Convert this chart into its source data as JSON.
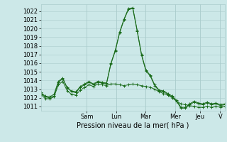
{
  "title": "",
  "xlabel": "Pression niveau de la mer( hPa )",
  "ylim": [
    1010.5,
    1022.8
  ],
  "yticks": [
    1011,
    1012,
    1013,
    1014,
    1015,
    1016,
    1017,
    1018,
    1019,
    1020,
    1021,
    1022
  ],
  "background_color": "#cce8e8",
  "grid_color": "#aacccc",
  "line_color": "#1a6b1a",
  "day_labels": [
    "Sam",
    "Lun",
    "Mar",
    "Mer",
    "Jeu",
    "V"
  ],
  "day_positions": [
    0.25,
    0.41,
    0.57,
    0.73,
    0.865,
    0.975
  ],
  "series": [
    [
      1012.5,
      1012.1,
      1012.0,
      1012.2,
      1013.8,
      1014.2,
      1013.2,
      1012.7,
      1012.6,
      1013.2,
      1013.5,
      1013.8,
      1013.5,
      1013.8,
      1013.7,
      1013.6,
      1015.9,
      1017.4,
      1019.5,
      1021.0,
      1022.2,
      1022.3,
      1019.7,
      1016.9,
      1015.1,
      1014.5,
      1013.4,
      1012.8,
      1012.7,
      1012.4,
      1012.1,
      1011.6,
      1010.8,
      1010.8,
      1011.2,
      1011.5,
      1011.3,
      1011.2,
      1011.4,
      1011.2,
      1011.3,
      1011.1,
      1011.2
    ],
    [
      1012.4,
      1011.9,
      1011.9,
      1012.1,
      1013.5,
      1013.9,
      1012.8,
      1012.4,
      1012.3,
      1012.9,
      1013.2,
      1013.5,
      1013.3,
      1013.6,
      1013.5,
      1013.4,
      1013.6,
      1013.6,
      1013.5,
      1013.4,
      1013.5,
      1013.6,
      1013.5,
      1013.4,
      1013.3,
      1013.2,
      1013.0,
      1012.7,
      1012.5,
      1012.3,
      1012.0,
      1011.6,
      1011.3,
      1011.2,
      1011.1,
      1011.0,
      1010.9,
      1010.9,
      1011.0,
      1010.9,
      1011.0,
      1010.9,
      1011.0
    ],
    [
      1012.6,
      1012.2,
      1012.1,
      1012.4,
      1013.9,
      1014.3,
      1013.1,
      1012.8,
      1012.7,
      1013.3,
      1013.6,
      1013.9,
      1013.6,
      1013.9,
      1013.8,
      1013.7,
      1016.0,
      1017.5,
      1019.6,
      1021.1,
      1022.3,
      1022.4,
      1019.8,
      1017.0,
      1015.2,
      1014.6,
      1013.5,
      1012.9,
      1012.8,
      1012.5,
      1012.2,
      1011.7,
      1010.9,
      1010.9,
      1011.3,
      1011.6,
      1011.4,
      1011.3,
      1011.5,
      1011.3,
      1011.4,
      1011.2,
      1011.3
    ]
  ],
  "n_points": 43,
  "xlabel_fontsize": 7,
  "ytick_fontsize": 6,
  "xtick_fontsize": 6
}
